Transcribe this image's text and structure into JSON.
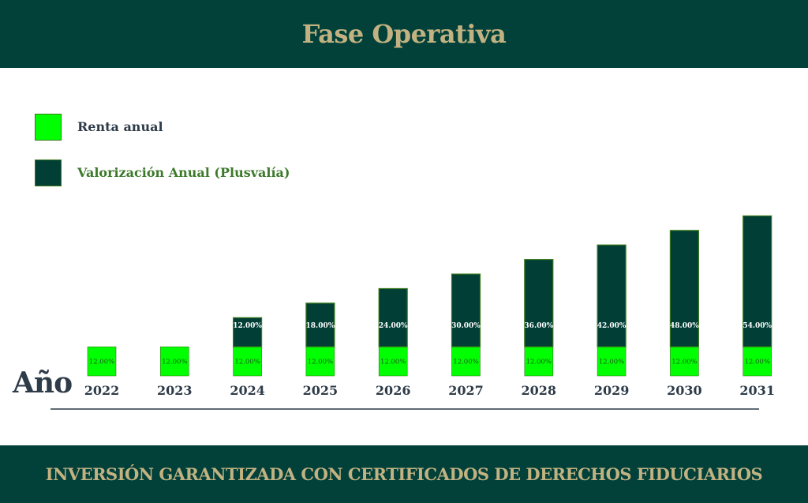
{
  "header": {
    "title": "Fase Operativa"
  },
  "colors": {
    "brand_dark": "#02403a",
    "gold": "#c2b281",
    "renta": "#00ff00",
    "valorizacion": "#013e36",
    "bar_border": "#3a7a1c",
    "axis": "#2e3b48"
  },
  "legend": {
    "items": [
      {
        "label": "Renta anual",
        "color": "#00ff00",
        "text_color": "#2e3b48"
      },
      {
        "label": "Valorización Anual (Plusvalía)",
        "color": "#013e36",
        "text_color": "#3c7a2a"
      }
    ]
  },
  "axis_title": "Año",
  "footer": {
    "text": "INVERSIÓN GARANTIZADA CON CERTIFICADOS DE DERECHOS FIDUCIARIOS"
  },
  "chart_data": {
    "type": "bar",
    "stacked": true,
    "title": "Fase Operativa",
    "xlabel": "Año",
    "ylabel": "",
    "categories": [
      "2022",
      "2023",
      "2024",
      "2025",
      "2026",
      "2027",
      "2028",
      "2029",
      "2030",
      "2031"
    ],
    "series": [
      {
        "name": "Renta anual",
        "values": [
          12,
          12,
          12,
          12,
          12,
          12,
          12,
          12,
          12,
          12
        ],
        "labels": [
          "12.00%",
          "12.00%",
          "12.00%",
          "12.00%",
          "12.00%",
          "12.00%",
          "12.00%",
          "12.00%",
          "12.00%",
          "12.00%"
        ]
      },
      {
        "name": "Valorización Anual (Plusvalía)",
        "values": [
          0,
          0,
          12,
          18,
          24,
          30,
          36,
          42,
          48,
          54
        ],
        "labels": [
          "",
          "",
          "12.00%",
          "18.00%",
          "24.00%",
          "30.00%",
          "36.00%",
          "42.00%",
          "48.00%",
          "54.00%"
        ]
      }
    ],
    "ylim": [
      0,
      72
    ],
    "grid": false,
    "legend_position": "top-left"
  }
}
